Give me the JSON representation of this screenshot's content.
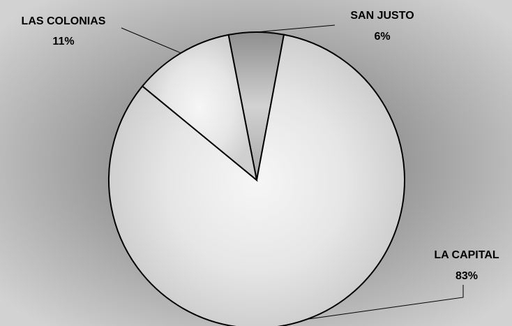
{
  "chart_data": {
    "type": "pie",
    "categories": [
      "SAN JUSTO",
      "LA CAPITAL",
      "LAS COLONIAS"
    ],
    "values": [
      6,
      83,
      11
    ],
    "labels": [
      {
        "name": "SAN JUSTO",
        "percent": "6%"
      },
      {
        "name": "LA CAPITAL",
        "percent": "83%"
      },
      {
        "name": "LAS COLONIAS",
        "percent": "11%"
      }
    ],
    "start_angle_deg": -11,
    "direction": "clockwise",
    "legend": "none",
    "colors": {
      "background": "#c8c8c8",
      "slice_light": "#f0f0f0",
      "slice_mid": "#bdbdbd",
      "slice_dark": "#8e8e8e",
      "stroke": "#000000"
    }
  }
}
